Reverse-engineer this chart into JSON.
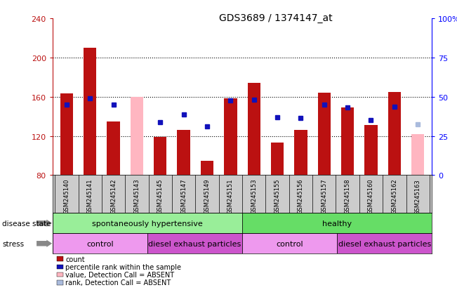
{
  "title": "GDS3689 / 1374147_at",
  "samples": [
    "GSM245140",
    "GSM245141",
    "GSM245142",
    "GSM245143",
    "GSM245145",
    "GSM245147",
    "GSM245149",
    "GSM245151",
    "GSM245153",
    "GSM245155",
    "GSM245156",
    "GSM245157",
    "GSM245158",
    "GSM245160",
    "GSM245162",
    "GSM245163"
  ],
  "count_values": [
    163,
    210,
    135,
    null,
    119,
    126,
    95,
    158,
    174,
    113,
    126,
    164,
    149,
    131,
    165,
    null
  ],
  "count_absent": [
    null,
    null,
    null,
    160,
    null,
    null,
    null,
    null,
    null,
    null,
    null,
    null,
    null,
    null,
    null,
    122
  ],
  "rank_values": [
    152,
    158,
    152,
    null,
    134,
    142,
    130,
    156,
    157,
    139,
    138,
    152,
    149,
    136,
    150,
    null
  ],
  "rank_absent": [
    null,
    null,
    null,
    null,
    null,
    null,
    null,
    null,
    null,
    null,
    null,
    null,
    null,
    null,
    null,
    132
  ],
  "ylim_left": [
    80,
    240
  ],
  "ylim_right": [
    0,
    100
  ],
  "yticks_left": [
    80,
    120,
    160,
    200,
    240
  ],
  "yticks_right": [
    0,
    25,
    50,
    75,
    100
  ],
  "bar_width": 0.55,
  "bar_color_red": "#bb1111",
  "bar_color_pink": "#ffb6c1",
  "dot_color_blue": "#1111bb",
  "dot_color_lightblue": "#aabbdd",
  "ds_groups": [
    {
      "label": "spontaneously hypertensive",
      "start": 0,
      "end": 8,
      "color": "#99ee99"
    },
    {
      "label": "healthy",
      "start": 8,
      "end": 16,
      "color": "#66dd66"
    }
  ],
  "stress_groups": [
    {
      "label": "control",
      "start": 0,
      "end": 4,
      "color": "#ee99ee"
    },
    {
      "label": "diesel exhaust particles",
      "start": 4,
      "end": 8,
      "color": "#cc55cc"
    },
    {
      "label": "control",
      "start": 8,
      "end": 12,
      "color": "#ee99ee"
    },
    {
      "label": "diesel exhaust particles",
      "start": 12,
      "end": 16,
      "color": "#cc55cc"
    }
  ],
  "legend_items": [
    {
      "label": "count",
      "color": "#bb1111"
    },
    {
      "label": "percentile rank within the sample",
      "color": "#1111bb"
    },
    {
      "label": "value, Detection Call = ABSENT",
      "color": "#ffb6c1"
    },
    {
      "label": "rank, Detection Call = ABSENT",
      "color": "#aabbdd"
    }
  ],
  "background_color": "#cccccc",
  "fig_bg": "#ffffff"
}
